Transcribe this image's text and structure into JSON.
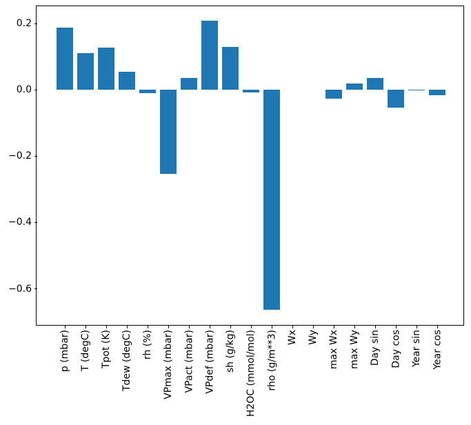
{
  "figure": {
    "background": "#ffffff",
    "title": ""
  },
  "chart_data": {
    "type": "bar",
    "title": "",
    "xlabel": "",
    "ylabel": "",
    "bar_color": "#1f77b4",
    "axis_color": "#000000",
    "grid": false,
    "legend": null,
    "categories": [
      "p (mbar)",
      "T (degC)",
      "Tpot (K)",
      "Tdew (degC)",
      "rh (%)",
      "VPmax (mbar)",
      "VPact (mbar)",
      "VPdef (mbar)",
      "sh (g/kg)",
      "H2OC (mmol/mol)",
      "rho (g/m**3)",
      "Wx",
      "Wy",
      "max Wx",
      "max Wy",
      "Day sin",
      "Day cos",
      "Year sin",
      "Year cos"
    ],
    "values": [
      0.187,
      0.11,
      0.128,
      0.055,
      -0.011,
      -0.254,
      0.035,
      0.208,
      0.129,
      -0.008,
      -0.664,
      0.0,
      0.0,
      -0.026,
      0.019,
      0.035,
      -0.054,
      -0.002,
      -0.017
    ],
    "ytick_labels": [
      "0.2",
      "0.0",
      "−0.2",
      "−0.4",
      "−0.6"
    ],
    "ytick_values": [
      0.2,
      0.0,
      -0.2,
      -0.4,
      -0.6
    ],
    "ylim": [
      -0.711,
      0.252
    ],
    "x_label_rotation_deg": 90
  }
}
